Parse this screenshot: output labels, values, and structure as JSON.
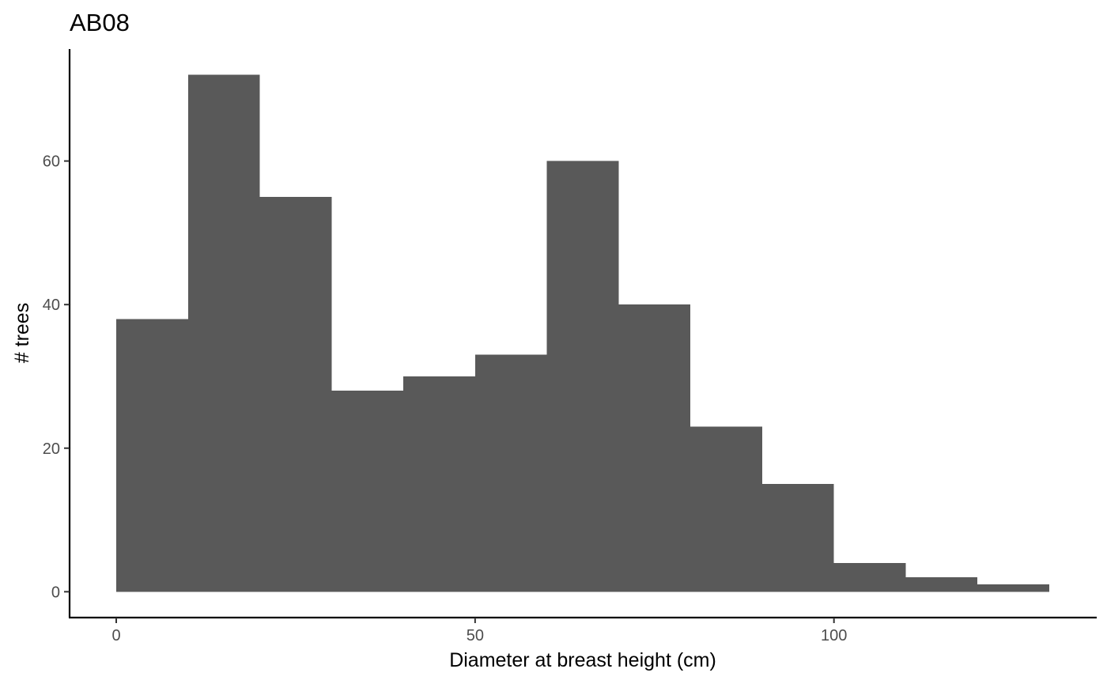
{
  "chart_data": {
    "type": "bar",
    "title": "AB08",
    "xlabel": "Diameter at breast height (cm)",
    "ylabel": "# trees",
    "bins": [
      {
        "x0": 0,
        "x1": 10,
        "count": 38
      },
      {
        "x0": 10,
        "x1": 20,
        "count": 72
      },
      {
        "x0": 20,
        "x1": 30,
        "count": 55
      },
      {
        "x0": 30,
        "x1": 40,
        "count": 28
      },
      {
        "x0": 40,
        "x1": 50,
        "count": 30
      },
      {
        "x0": 50,
        "x1": 60,
        "count": 33
      },
      {
        "x0": 60,
        "x1": 70,
        "count": 60
      },
      {
        "x0": 70,
        "x1": 80,
        "count": 40
      },
      {
        "x0": 80,
        "x1": 90,
        "count": 23
      },
      {
        "x0": 90,
        "x1": 100,
        "count": 15
      },
      {
        "x0": 100,
        "x1": 110,
        "count": 4
      },
      {
        "x0": 110,
        "x1": 120,
        "count": 2
      },
      {
        "x0": 120,
        "x1": 130,
        "count": 1
      }
    ],
    "xticks": [
      0,
      50,
      100
    ],
    "yticks": [
      0,
      20,
      40,
      60
    ],
    "xlim": [
      -6.5,
      136.5
    ],
    "ylim": [
      -3.6,
      75.6
    ],
    "bar_color": "#595959",
    "grid": false,
    "legend": "none"
  }
}
